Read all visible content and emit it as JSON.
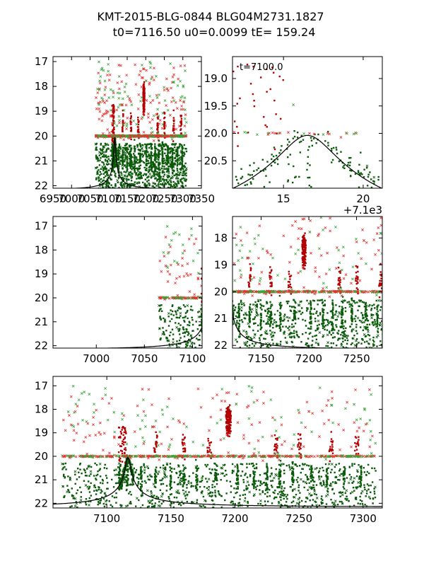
{
  "title_line1": "KMT-2015-BLG-0844 BLG04M2731.1827",
  "title_line2": "t0=7116.50 u0=0.0099 tE= 159.24",
  "colors": {
    "green": "#0a5a0a",
    "red": "#b30000",
    "redx": "#e83030",
    "greenx": "#3aa63a",
    "model": "#000000"
  },
  "chart_data": [
    {
      "type": "scatter",
      "panel": "top-left",
      "xlim": [
        6950,
        7350
      ],
      "ylim": [
        22.1,
        16.8
      ],
      "xticks": [
        6950,
        7000,
        7050,
        7100,
        7150,
        7200,
        7250,
        7300,
        7350
      ],
      "xtick_labels": [
        "6950",
        "7000",
        "7050",
        "7100",
        "7150",
        "7200",
        "7250",
        "7300",
        "7350"
      ],
      "yticks": [
        17,
        18,
        19,
        20,
        21,
        22
      ],
      "ytick_labels": [
        "17",
        "18",
        "19",
        "20",
        "21",
        "22"
      ],
      "model_curve": true
    },
    {
      "type": "scatter",
      "panel": "top-right",
      "xlim": [
        7111.8,
        7121.2
      ],
      "ylim": [
        21.0,
        18.6
      ],
      "xticks": [
        7115,
        7120
      ],
      "xtick_labels": [
        "15",
        "20"
      ],
      "yticks": [
        19.0,
        19.5,
        20.0,
        20.5
      ],
      "ytick_labels": [
        "19.0",
        "19.5",
        "20.0",
        "20.5"
      ],
      "offset_text": "+7.1e3",
      "annotation": "t=7100.0",
      "model_curve": true
    },
    {
      "type": "scatter",
      "panel": "middle-left",
      "xlim": [
        6955,
        7110
      ],
      "ylim": [
        22.1,
        16.6
      ],
      "xticks": [
        7000,
        7050,
        7100
      ],
      "xtick_labels": [
        "7000",
        "7050",
        "7100"
      ],
      "yticks": [
        17,
        18,
        19,
        20,
        21,
        22
      ],
      "ytick_labels": [
        "17",
        "18",
        "19",
        "20",
        "21",
        "22"
      ],
      "model_curve": true
    },
    {
      "type": "scatter",
      "panel": "middle-right",
      "xlim": [
        7120,
        7277
      ],
      "ylim": [
        22.1,
        17.2
      ],
      "xticks": [
        7150,
        7200,
        7250
      ],
      "xtick_labels": [
        "7150",
        "7200",
        "7250"
      ],
      "yticks": [
        18,
        19,
        20,
        21,
        22
      ],
      "ytick_labels": [
        "18",
        "19",
        "20",
        "21",
        "22"
      ],
      "model_curve": true
    },
    {
      "type": "scatter",
      "panel": "bottom",
      "xlim": [
        7058,
        7315
      ],
      "ylim": [
        22.2,
        16.6
      ],
      "xticks": [
        7100,
        7150,
        7200,
        7250,
        7300
      ],
      "xtick_labels": [
        "7100",
        "7150",
        "7200",
        "7250",
        "7300"
      ],
      "yticks": [
        17,
        18,
        19,
        20,
        21,
        22
      ],
      "ytick_labels": [
        "17",
        "18",
        "19",
        "20",
        "21",
        "22"
      ],
      "model_curve": true
    }
  ]
}
